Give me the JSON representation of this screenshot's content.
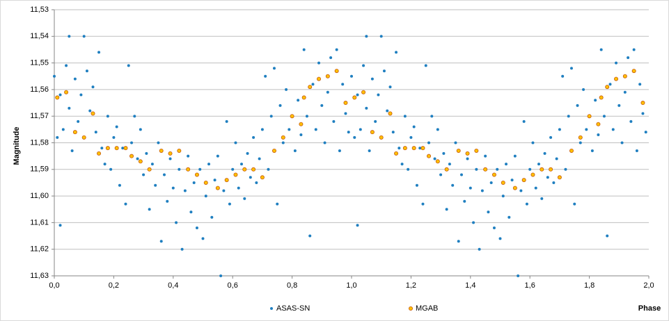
{
  "chart_data": {
    "type": "scatter",
    "xlabel": "Phase",
    "ylabel": "Magnitude",
    "xlim": [
      0,
      2
    ],
    "ylim": [
      11.53,
      11.63
    ],
    "y_inverted": true,
    "grid": true,
    "legend": "bottom",
    "xticks": [
      {
        "value": 0,
        "label": "0,0"
      },
      {
        "value": 0.2,
        "label": "0,2"
      },
      {
        "value": 0.4,
        "label": "0,4"
      },
      {
        "value": 0.6,
        "label": "0,6"
      },
      {
        "value": 0.8,
        "label": "0,8"
      },
      {
        "value": 1,
        "label": "1,0"
      },
      {
        "value": 1.2,
        "label": "1,2"
      },
      {
        "value": 1.4,
        "label": "1,4"
      },
      {
        "value": 1.6,
        "label": "1,6"
      },
      {
        "value": 1.8,
        "label": "1,8"
      },
      {
        "value": 2,
        "label": "2,0"
      }
    ],
    "yticks": [
      {
        "value": 11.53,
        "label": "11,53"
      },
      {
        "value": 11.54,
        "label": "11,54"
      },
      {
        "value": 11.55,
        "label": "11,55"
      },
      {
        "value": 11.56,
        "label": "11,56"
      },
      {
        "value": 11.57,
        "label": "11,57"
      },
      {
        "value": 11.58,
        "label": "11,58"
      },
      {
        "value": 11.59,
        "label": "11,59"
      },
      {
        "value": 11.6,
        "label": "11,60"
      },
      {
        "value": 11.61,
        "label": "11,61"
      },
      {
        "value": 11.62,
        "label": "11,62"
      },
      {
        "value": 11.63,
        "label": "11,63"
      }
    ],
    "series": [
      {
        "name": "ASAS-SN",
        "color": "#1f7fc0",
        "x": [
          0.0,
          0.01,
          0.02,
          0.02,
          0.03,
          0.04,
          0.05,
          0.05,
          0.06,
          0.07,
          0.08,
          0.09,
          0.1,
          0.1,
          0.11,
          0.12,
          0.13,
          0.14,
          0.15,
          0.16,
          0.17,
          0.18,
          0.19,
          0.2,
          0.21,
          0.22,
          0.23,
          0.24,
          0.25,
          0.26,
          0.27,
          0.28,
          0.29,
          0.3,
          0.31,
          0.32,
          0.33,
          0.34,
          0.35,
          0.36,
          0.37,
          0.38,
          0.39,
          0.4,
          0.41,
          0.42,
          0.43,
          0.44,
          0.45,
          0.46,
          0.47,
          0.48,
          0.49,
          0.5,
          0.51,
          0.52,
          0.53,
          0.54,
          0.55,
          0.56,
          0.57,
          0.58,
          0.59,
          0.6,
          0.61,
          0.62,
          0.63,
          0.64,
          0.65,
          0.66,
          0.67,
          0.68,
          0.69,
          0.7,
          0.71,
          0.72,
          0.73,
          0.74,
          0.75,
          0.76,
          0.77,
          0.78,
          0.79,
          0.8,
          0.81,
          0.82,
          0.83,
          0.84,
          0.85,
          0.86,
          0.87,
          0.88,
          0.89,
          0.9,
          0.91,
          0.92,
          0.93,
          0.94,
          0.95,
          0.96,
          0.97,
          0.98,
          0.99,
          1.0,
          1.01,
          1.02,
          1.02,
          1.03,
          1.04,
          1.05,
          1.05,
          1.06,
          1.07,
          1.08,
          1.09,
          1.1,
          1.1,
          1.11,
          1.12,
          1.13,
          1.14,
          1.15,
          1.16,
          1.17,
          1.18,
          1.19,
          1.2,
          1.21,
          1.22,
          1.23,
          1.24,
          1.25,
          1.26,
          1.27,
          1.28,
          1.29,
          1.3,
          1.31,
          1.32,
          1.33,
          1.34,
          1.35,
          1.36,
          1.37,
          1.38,
          1.39,
          1.4,
          1.41,
          1.42,
          1.43,
          1.44,
          1.45,
          1.46,
          1.47,
          1.48,
          1.49,
          1.5,
          1.51,
          1.52,
          1.53,
          1.54,
          1.55,
          1.56,
          1.57,
          1.58,
          1.59,
          1.6,
          1.61,
          1.62,
          1.63,
          1.64,
          1.65,
          1.66,
          1.67,
          1.68,
          1.69,
          1.7,
          1.71,
          1.72,
          1.73,
          1.74,
          1.75,
          1.76,
          1.77,
          1.78,
          1.79,
          1.8,
          1.81,
          1.82,
          1.83,
          1.84,
          1.85,
          1.86,
          1.87,
          1.88,
          1.89,
          1.9,
          1.91,
          1.92,
          1.93,
          1.94,
          1.95,
          1.96,
          1.97,
          1.98,
          1.99
        ],
        "values": [
          11.555,
          11.578,
          11.611,
          11.562,
          11.575,
          11.551,
          11.54,
          11.567,
          11.583,
          11.556,
          11.572,
          11.562,
          11.54,
          11.578,
          11.553,
          11.568,
          11.559,
          11.576,
          11.546,
          11.582,
          11.588,
          11.57,
          11.59,
          11.578,
          11.574,
          11.596,
          11.582,
          11.603,
          11.551,
          11.58,
          11.57,
          11.586,
          11.575,
          11.592,
          11.584,
          11.605,
          11.588,
          11.596,
          11.58,
          11.617,
          11.592,
          11.602,
          11.586,
          11.597,
          11.61,
          11.59,
          11.62,
          11.598,
          11.585,
          11.606,
          11.595,
          11.612,
          11.59,
          11.616,
          11.6,
          11.588,
          11.608,
          11.594,
          11.585,
          11.63,
          11.598,
          11.572,
          11.603,
          11.59,
          11.58,
          11.597,
          11.588,
          11.601,
          11.584,
          11.593,
          11.578,
          11.595,
          11.586,
          11.575,
          11.555,
          11.59,
          11.57,
          11.552,
          11.603,
          11.566,
          11.58,
          11.56,
          11.575,
          11.57,
          11.583,
          11.564,
          11.577,
          11.545,
          11.57,
          11.615,
          11.558,
          11.575,
          11.55,
          11.566,
          11.58,
          11.561,
          11.548,
          11.572,
          11.545,
          11.583,
          11.558,
          11.569,
          11.576,
          11.555,
          11.578,
          11.611,
          11.562,
          11.575,
          11.551,
          11.54,
          11.567,
          11.583,
          11.556,
          11.572,
          11.562,
          11.54,
          11.578,
          11.553,
          11.568,
          11.559,
          11.576,
          11.546,
          11.582,
          11.588,
          11.57,
          11.59,
          11.578,
          11.574,
          11.596,
          11.582,
          11.603,
          11.551,
          11.58,
          11.57,
          11.586,
          11.575,
          11.592,
          11.584,
          11.605,
          11.588,
          11.596,
          11.58,
          11.617,
          11.592,
          11.602,
          11.586,
          11.597,
          11.61,
          11.59,
          11.62,
          11.598,
          11.585,
          11.606,
          11.595,
          11.612,
          11.59,
          11.616,
          11.6,
          11.588,
          11.608,
          11.594,
          11.585,
          11.63,
          11.598,
          11.572,
          11.603,
          11.59,
          11.58,
          11.597,
          11.588,
          11.601,
          11.584,
          11.593,
          11.578,
          11.595,
          11.586,
          11.575,
          11.555,
          11.59,
          11.57,
          11.552,
          11.603,
          11.566,
          11.58,
          11.56,
          11.575,
          11.57,
          11.583,
          11.564,
          11.577,
          11.545,
          11.57,
          11.615,
          11.558,
          11.575,
          11.55,
          11.566,
          11.58,
          11.561,
          11.548,
          11.572,
          11.545,
          11.583,
          11.558,
          11.569,
          11.576
        ]
      },
      {
        "name": "MGAB",
        "color": "#ffc000",
        "edgecolor": "#c55a11",
        "x": [
          0.01,
          0.04,
          0.07,
          0.1,
          0.13,
          0.15,
          0.18,
          0.21,
          0.24,
          0.26,
          0.29,
          0.32,
          0.36,
          0.39,
          0.42,
          0.45,
          0.48,
          0.51,
          0.55,
          0.58,
          0.61,
          0.64,
          0.67,
          0.7,
          0.74,
          0.77,
          0.8,
          0.83,
          0.84,
          0.86,
          0.89,
          0.92,
          0.95,
          0.98,
          1.01,
          1.04,
          1.07,
          1.1,
          1.13,
          1.15,
          1.18,
          1.21,
          1.24,
          1.26,
          1.29,
          1.32,
          1.36,
          1.39,
          1.42,
          1.45,
          1.48,
          1.51,
          1.55,
          1.58,
          1.61,
          1.64,
          1.67,
          1.7,
          1.74,
          1.77,
          1.8,
          1.83,
          1.84,
          1.86,
          1.89,
          1.92,
          1.95,
          1.98
        ],
        "values": [
          11.563,
          11.561,
          11.576,
          11.578,
          11.569,
          11.584,
          11.582,
          11.582,
          11.582,
          11.585,
          11.587,
          11.59,
          11.583,
          11.584,
          11.583,
          11.59,
          11.592,
          11.595,
          11.597,
          11.594,
          11.592,
          11.59,
          11.59,
          11.593,
          11.583,
          11.578,
          11.57,
          11.573,
          11.563,
          11.559,
          11.556,
          11.555,
          11.553,
          11.565,
          11.563,
          11.561,
          11.576,
          11.578,
          11.569,
          11.584,
          11.582,
          11.582,
          11.582,
          11.585,
          11.587,
          11.59,
          11.583,
          11.584,
          11.583,
          11.59,
          11.592,
          11.595,
          11.597,
          11.594,
          11.592,
          11.59,
          11.59,
          11.593,
          11.583,
          11.578,
          11.57,
          11.573,
          11.563,
          11.559,
          11.556,
          11.555,
          11.553,
          11.565
        ]
      }
    ]
  }
}
